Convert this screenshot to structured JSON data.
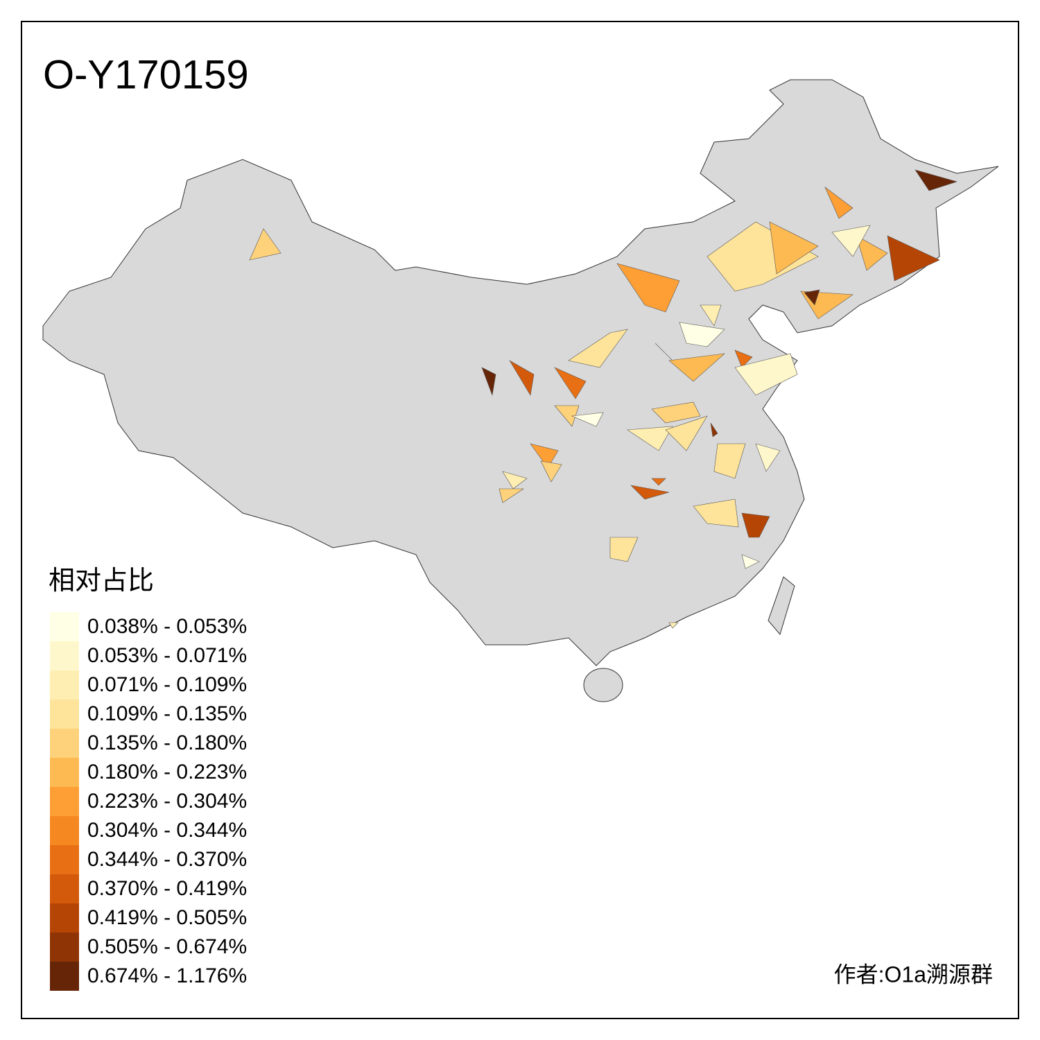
{
  "title": "O-Y170159",
  "legend": {
    "title": "相对占比",
    "items": [
      {
        "label": "0.038% - 0.053%",
        "color": "#ffffe5"
      },
      {
        "label": "0.053% - 0.071%",
        "color": "#fff7cc"
      },
      {
        "label": "0.071% - 0.109%",
        "color": "#feeeb2"
      },
      {
        "label": "0.109% - 0.135%",
        "color": "#fee49a"
      },
      {
        "label": "0.135% - 0.180%",
        "color": "#fed27a"
      },
      {
        "label": "0.180% - 0.223%",
        "color": "#feba52"
      },
      {
        "label": "0.223% - 0.304%",
        "color": "#fd9f35"
      },
      {
        "label": "0.304% - 0.344%",
        "color": "#f68822"
      },
      {
        "label": "0.344% - 0.370%",
        "color": "#e96f14"
      },
      {
        "label": "0.370% - 0.419%",
        "color": "#d35a0a"
      },
      {
        "label": "0.419% - 0.505%",
        "color": "#b54505"
      },
      {
        "label": "0.505% - 0.674%",
        "color": "#8f3404"
      },
      {
        "label": "0.674% - 1.176%",
        "color": "#662506"
      }
    ]
  },
  "credit": "作者:O1a溯源群"
}
